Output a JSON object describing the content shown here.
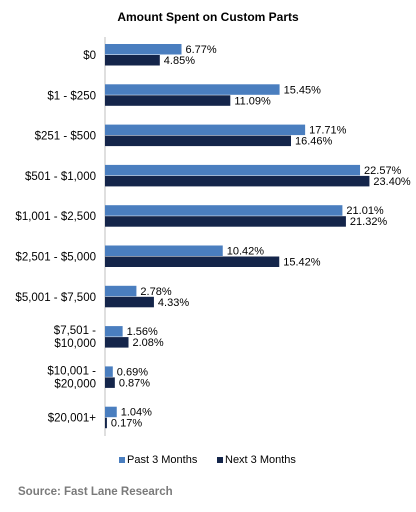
{
  "chart_data": {
    "type": "bar",
    "orientation": "horizontal",
    "title": "Amount Spent on Custom Parts",
    "categories": [
      [
        "$0"
      ],
      [
        "$1 - $250"
      ],
      [
        "$251 - $500"
      ],
      [
        "$501 - $1,000"
      ],
      [
        "$1,001 - $2,500"
      ],
      [
        "$2,501 - $5,000"
      ],
      [
        "$5,001 - $7,500"
      ],
      [
        "$7,501 -",
        "$10,000"
      ],
      [
        "$10,001 -",
        "$20,000"
      ],
      [
        "$20,001+"
      ]
    ],
    "series": [
      {
        "name": "Past 3 Months",
        "color": "#4a7ebf",
        "values": [
          6.77,
          15.45,
          17.71,
          22.57,
          21.01,
          10.42,
          2.78,
          1.56,
          0.69,
          1.04
        ],
        "labels": [
          "6.77%",
          "15.45%",
          "17.71%",
          "22.57%",
          "21.01%",
          "10.42%",
          "2.78%",
          "1.56%",
          "0.69%",
          "1.04%"
        ]
      },
      {
        "name": "Next 3 Months",
        "color": "#14254a",
        "values": [
          4.85,
          11.09,
          16.46,
          23.4,
          21.32,
          15.42,
          4.33,
          2.08,
          0.87,
          0.17
        ],
        "labels": [
          "4.85%",
          "11.09%",
          "16.46%",
          "23.40%",
          "21.32%",
          "15.42%",
          "4.33%",
          "2.08%",
          "0.87%",
          "0.17%"
        ]
      }
    ],
    "xlim": [
      0,
      25
    ],
    "legend_position": "bottom",
    "grid": false
  },
  "source": "Source: Fast Lane Research"
}
